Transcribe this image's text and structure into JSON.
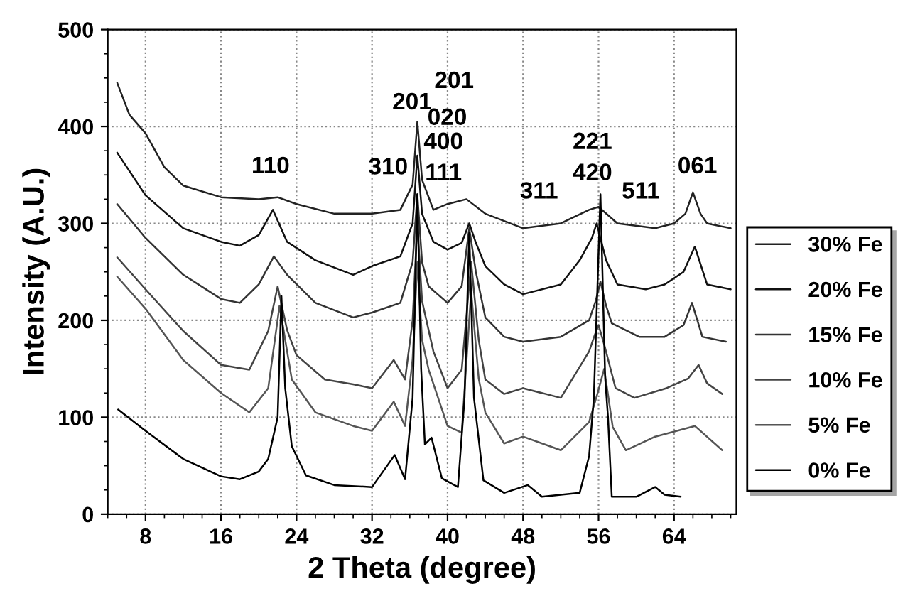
{
  "chart_data": {
    "type": "line",
    "xlabel": "2 Theta (degree)",
    "ylabel": "Intensity (A.U.)",
    "xlim": [
      4,
      70.6
    ],
    "xticks": [
      8,
      16,
      24,
      32,
      40,
      48,
      56,
      64
    ],
    "ylim": [
      0,
      500
    ],
    "yticks": [
      0,
      100,
      200,
      300,
      400,
      500
    ],
    "grid": true,
    "legend": "right",
    "line_style": "solid",
    "marker": "none",
    "series": [
      {
        "name": "30% Fe",
        "color": "#222222",
        "x": [
          5,
          6.3,
          8,
          10,
          12,
          16,
          20,
          22,
          24,
          28,
          32,
          35,
          36.3,
          36.8,
          37.3,
          38.5,
          40,
          42,
          44,
          48,
          52,
          55,
          56,
          58,
          62,
          64,
          65.2,
          66,
          66.8,
          67.5,
          70
        ],
        "values": [
          445,
          412,
          393,
          358,
          339,
          327,
          325,
          327,
          320,
          310,
          310,
          314,
          340,
          405,
          345,
          314,
          320,
          325,
          310,
          295,
          300,
          314,
          317,
          300,
          295,
          300,
          310,
          332,
          310,
          300,
          295
        ]
      },
      {
        "name": "20% Fe",
        "color": "#111111",
        "x": [
          5,
          8,
          12,
          16,
          18,
          20,
          21.5,
          23,
          26,
          30,
          32,
          35,
          36.3,
          36.8,
          37.3,
          38.5,
          40,
          41.5,
          42.3,
          43,
          44,
          46,
          48,
          52,
          54,
          55.3,
          55.8,
          56.8,
          58,
          61,
          63,
          65,
          66.2,
          67.5,
          70
        ],
        "values": [
          373,
          329,
          295,
          281,
          277,
          288,
          314,
          281,
          262,
          247,
          256,
          266,
          300,
          370,
          310,
          281,
          273,
          280,
          300,
          280,
          256,
          237,
          227,
          237,
          262,
          285,
          300,
          262,
          237,
          232,
          237,
          250,
          276,
          237,
          232
        ]
      },
      {
        "name": "15% Fe",
        "color": "#333333",
        "x": [
          5,
          8,
          12,
          16,
          18,
          20,
          21.6,
          23,
          26,
          30,
          32,
          35,
          36.3,
          36.8,
          37.3,
          38,
          40,
          41.5,
          42.3,
          43,
          44,
          46,
          48,
          52,
          55,
          55.7,
          56.2,
          56.8,
          57.4,
          60.3,
          63,
          65,
          65.9,
          67,
          69.5
        ],
        "values": [
          320,
          285,
          247,
          222,
          218,
          237,
          266,
          247,
          218,
          203,
          208,
          218,
          260,
          330,
          260,
          235,
          218,
          235,
          295,
          250,
          203,
          183,
          178,
          183,
          200,
          220,
          240,
          215,
          197,
          183,
          183,
          195,
          218,
          183,
          178
        ]
      },
      {
        "name": "10% Fe",
        "color": "#444444",
        "x": [
          5,
          8,
          12,
          16,
          19,
          21,
          22,
          23,
          24,
          27,
          30,
          32,
          34.3,
          35.5,
          36.3,
          36.8,
          37.3,
          38.5,
          40,
          41.5,
          42.5,
          43.3,
          44,
          46,
          48,
          52,
          55,
          55.6,
          56,
          56.6,
          57.8,
          59.8,
          63.2,
          65.5,
          66.6,
          67.5,
          69.1
        ],
        "values": [
          265,
          232,
          189,
          154,
          149,
          189,
          235,
          190,
          164,
          139,
          134,
          130,
          159,
          139,
          200,
          300,
          220,
          168,
          130,
          149,
          260,
          180,
          139,
          124,
          130,
          120,
          168,
          185,
          195,
          175,
          130,
          120,
          130,
          140,
          154,
          135,
          124
        ]
      },
      {
        "name": "5% Fe",
        "color": "#555555",
        "x": [
          5,
          8,
          12,
          16,
          19,
          21,
          22.2,
          23.5,
          26,
          30,
          32,
          34.3,
          35.5,
          36.3,
          36.8,
          37.3,
          38,
          40,
          41.5,
          42.5,
          43.3,
          44,
          46,
          48,
          52,
          55,
          55.9,
          56.6,
          57.5,
          58.9,
          62,
          66.2,
          69.1
        ],
        "values": [
          245,
          212,
          159,
          125,
          105,
          130,
          215,
          139,
          105,
          91,
          86,
          116,
          91,
          160,
          260,
          180,
          149,
          91,
          84,
          230,
          140,
          105,
          73,
          80,
          66,
          95,
          125,
          150,
          90,
          66,
          80,
          91,
          66
        ]
      },
      {
        "name": "0% Fe",
        "color": "#000000",
        "x": [
          5.1,
          8,
          12,
          16,
          18,
          20,
          21,
          22,
          22.4,
          22.8,
          23.5,
          25,
          28,
          32,
          34.4,
          35.5,
          36.3,
          36.8,
          37.2,
          37.6,
          38.3,
          39.4,
          41.1,
          41.8,
          42.3,
          42.8,
          43.8,
          46,
          48.5,
          50,
          54,
          55,
          55.5,
          56.2,
          56.7,
          57,
          57.4,
          60,
          62,
          63,
          64.7
        ],
        "values": [
          108,
          86,
          57,
          39,
          36,
          44,
          57,
          100,
          225,
          130,
          70,
          40,
          30,
          28,
          61,
          36,
          120,
          330,
          150,
          72,
          79,
          37,
          28,
          120,
          290,
          120,
          35,
          22,
          30,
          18,
          22,
          60,
          120,
          330,
          140,
          100,
          18,
          18,
          28,
          20,
          18
        ]
      }
    ],
    "annotations": [
      "110",
      "310",
      "201",
      "201",
      "020",
      "400",
      "111",
      "311",
      "221",
      "420",
      "511",
      "061"
    ]
  }
}
